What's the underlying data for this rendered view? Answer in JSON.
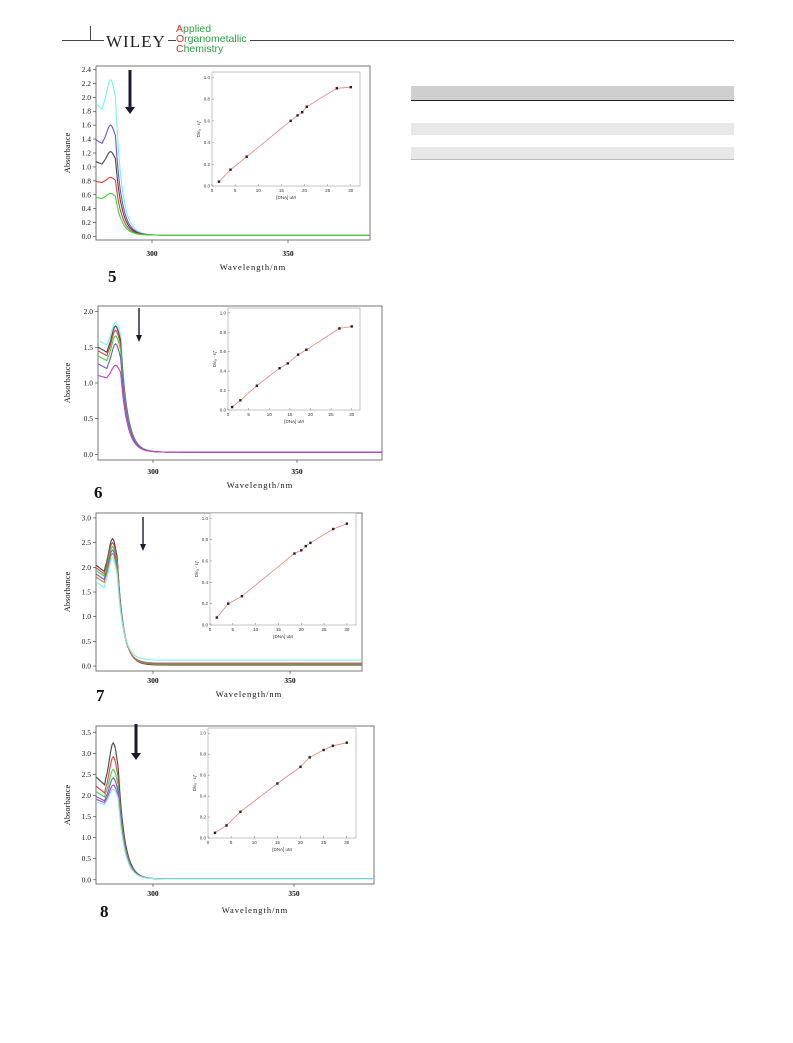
{
  "header": {
    "publisher": "WILEY",
    "journal_line1_initial": "A",
    "journal_line1_rest": "pplied",
    "journal_line2_initial": "O",
    "journal_line2_rest": "rganometallic",
    "journal_line3_initial": "C",
    "journal_line3_rest": "hemistry"
  },
  "colors": {
    "journal_red": "#d9342b",
    "journal_green": "#2e9e47",
    "fit_line": "#f08080"
  },
  "chart_data": [
    {
      "type": "line",
      "panel_label": "5",
      "xlabel": "Wavelength/nm",
      "ylabel": "Absorbance",
      "x_ticks": [
        "300",
        "350"
      ],
      "y_ticks": [
        "0.0",
        "0.2",
        "0.4",
        "0.6",
        "0.8",
        "1.0",
        "1.2",
        "1.4",
        "1.6",
        "1.8",
        "2.0",
        "2.2",
        "2.4"
      ],
      "xlim": [
        277,
        390
      ],
      "ylim": [
        -0.05,
        2.45
      ],
      "peak_x": 283,
      "curves": [
        {
          "color": "#7ff0f0",
          "peak": 2.25,
          "base": 1.85,
          "tail": 0.02
        },
        {
          "color": "#6a5acd",
          "peak": 1.6,
          "base": 1.35,
          "tail": 0.02
        },
        {
          "color": "#444444",
          "peak": 1.22,
          "base": 1.05,
          "tail": 0.02
        },
        {
          "color": "#e04040",
          "peak": 0.85,
          "base": 0.78,
          "tail": 0.02
        },
        {
          "color": "#3cd63c",
          "peak": 0.62,
          "base": 0.55,
          "tail": 0.02
        }
      ],
      "inset": {
        "xlabel": "[DNA] uM",
        "ylabel": "D/εₐ - εƒ",
        "x_ticks": [
          "0",
          "5",
          "10",
          "15",
          "20",
          "25",
          "30"
        ],
        "y_ticks": [
          "0.0",
          "0.2",
          "0.4",
          "0.6",
          "0.8",
          "1.0"
        ],
        "xlim": [
          0,
          32
        ],
        "ylim": [
          0,
          1.05
        ],
        "points": [
          [
            1.5,
            0.04
          ],
          [
            4,
            0.15
          ],
          [
            7.5,
            0.27
          ],
          [
            17,
            0.6
          ],
          [
            18.5,
            0.65
          ],
          [
            19.5,
            0.68
          ],
          [
            20.5,
            0.73
          ],
          [
            27,
            0.9
          ],
          [
            30,
            0.91
          ]
        ]
      }
    },
    {
      "type": "line",
      "panel_label": "6",
      "xlabel": "Wavelength/nm",
      "ylabel": "Absorbance",
      "x_ticks": [
        "300",
        "350"
      ],
      "y_ticks": [
        "0.0",
        "0.5",
        "1.0",
        "1.5",
        "2.0"
      ],
      "xlim": [
        277,
        390
      ],
      "ylim": [
        -0.08,
        2.08
      ],
      "peak_x": 284,
      "curves": [
        {
          "color": "#7ff0f0",
          "peak": 1.85,
          "base": 1.55,
          "tail": 0.03
        },
        {
          "color": "#444444",
          "peak": 1.8,
          "base": 1.45,
          "tail": 0.03
        },
        {
          "color": "#e04040",
          "peak": 1.74,
          "base": 1.4,
          "tail": 0.03
        },
        {
          "color": "#3cd63c",
          "peak": 1.66,
          "base": 1.33,
          "tail": 0.03
        },
        {
          "color": "#6a5acd",
          "peak": 1.55,
          "base": 1.22,
          "tail": 0.03
        },
        {
          "color": "#c040c0",
          "peak": 1.25,
          "base": 1.08,
          "tail": 0.03
        }
      ],
      "inset": {
        "xlabel": "[DNA] uM",
        "ylabel": "D/εₐ - εƒ",
        "x_ticks": [
          "0",
          "5",
          "10",
          "15",
          "20",
          "25",
          "30"
        ],
        "y_ticks": [
          "0.0",
          "0.2",
          "0.4",
          "0.6",
          "0.8",
          "1.0"
        ],
        "xlim": [
          0,
          32
        ],
        "ylim": [
          0,
          1.05
        ],
        "points": [
          [
            1,
            0.03
          ],
          [
            3,
            0.1
          ],
          [
            7,
            0.25
          ],
          [
            12.5,
            0.43
          ],
          [
            14.5,
            0.48
          ],
          [
            17,
            0.57
          ],
          [
            19,
            0.62
          ],
          [
            27,
            0.84
          ],
          [
            30,
            0.86
          ]
        ]
      }
    },
    {
      "type": "line",
      "panel_label": "7",
      "xlabel": "Wavelength/nm",
      "ylabel": "Absorbance",
      "x_ticks": [
        "300",
        "350"
      ],
      "y_ticks": [
        "0.0",
        "0.5",
        "1.0",
        "1.5",
        "2.0",
        "2.5",
        "3.0"
      ],
      "xlim": [
        277,
        390
      ],
      "ylim": [
        -0.1,
        3.1
      ],
      "peak_x": 284,
      "curves": [
        {
          "color": "#444444",
          "peak": 2.58,
          "base": 1.95,
          "tail": 0.02
        },
        {
          "color": "#e04040",
          "peak": 2.5,
          "base": 1.9,
          "tail": 0.03
        },
        {
          "color": "#3cd63c",
          "peak": 2.42,
          "base": 1.85,
          "tail": 0.04
        },
        {
          "color": "#6a5acd",
          "peak": 2.35,
          "base": 1.78,
          "tail": 0.05
        },
        {
          "color": "#c08040",
          "peak": 2.28,
          "base": 1.72,
          "tail": 0.06
        },
        {
          "color": "#7ff0f0",
          "peak": 2.2,
          "base": 1.62,
          "tail": 0.12
        }
      ],
      "inset": {
        "xlabel": "[DNA] uM",
        "ylabel": "D/εₐ - εƒ",
        "x_ticks": [
          "0",
          "5",
          "10",
          "15",
          "20",
          "25",
          "30"
        ],
        "y_ticks": [
          "0.0",
          "0.2",
          "0.4",
          "0.6",
          "0.8",
          "1.0"
        ],
        "xlim": [
          0,
          32
        ],
        "ylim": [
          0,
          1.05
        ],
        "points": [
          [
            1.5,
            0.07
          ],
          [
            4,
            0.2
          ],
          [
            7,
            0.27
          ],
          [
            18.5,
            0.67
          ],
          [
            20,
            0.7
          ],
          [
            21,
            0.74
          ],
          [
            22,
            0.77
          ],
          [
            27,
            0.9
          ],
          [
            30,
            0.95
          ]
        ]
      }
    },
    {
      "type": "line",
      "panel_label": "8",
      "xlabel": "Wavelength/nm",
      "ylabel": "Absorbance",
      "x_ticks": [
        "300",
        "350"
      ],
      "y_ticks": [
        "0.0",
        "0.5",
        "1.0",
        "1.5",
        "2.0",
        "2.5",
        "3.0",
        "3.5"
      ],
      "xlim": [
        277,
        390
      ],
      "ylim": [
        -0.1,
        3.65
      ],
      "peak_x": 284,
      "curves": [
        {
          "color": "#444444",
          "peak": 3.25,
          "base": 2.3,
          "tail": 0.02
        },
        {
          "color": "#e04040",
          "peak": 2.92,
          "base": 2.1,
          "tail": 0.02
        },
        {
          "color": "#3cd63c",
          "peak": 2.62,
          "base": 2.0,
          "tail": 0.02
        },
        {
          "color": "#6a5acd",
          "peak": 2.42,
          "base": 1.9,
          "tail": 0.02
        },
        {
          "color": "#c040c0",
          "peak": 2.25,
          "base": 1.85,
          "tail": 0.02
        },
        {
          "color": "#7ff0f0",
          "peak": 2.15,
          "base": 1.8,
          "tail": 0.02
        }
      ],
      "inset": {
        "xlabel": "[DNA] uM",
        "ylabel": "D/εₐ - εƒ",
        "x_ticks": [
          "0",
          "5",
          "10",
          "15",
          "20",
          "25",
          "30"
        ],
        "y_ticks": [
          "0.0",
          "0.2",
          "0.4",
          "0.6",
          "0.8",
          "1.0"
        ],
        "xlim": [
          0,
          32
        ],
        "ylim": [
          0,
          1.05
        ],
        "points": [
          [
            1.5,
            0.05
          ],
          [
            4,
            0.12
          ],
          [
            7,
            0.25
          ],
          [
            15,
            0.52
          ],
          [
            20,
            0.68
          ],
          [
            22,
            0.77
          ],
          [
            25,
            0.84
          ],
          [
            27,
            0.88
          ],
          [
            30,
            0.91
          ]
        ]
      }
    }
  ]
}
